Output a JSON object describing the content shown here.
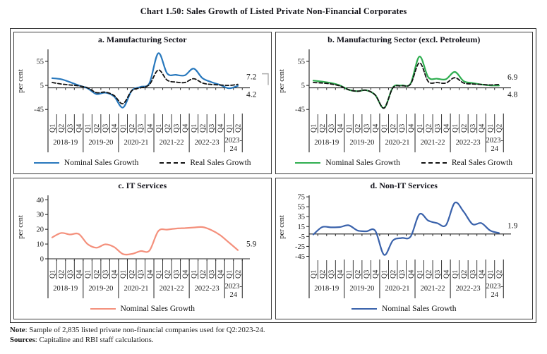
{
  "page": {
    "title": "Chart 1.50: Sales Growth of Listed Private Non-Financial Corporates"
  },
  "notes": {
    "note_label": "Note",
    "note_text": ": Sample of 2,835 listed private non-financial companies used for Q2:2023-24.",
    "sources_label": "Sources",
    "sources_text": ": Capitaline and RBI staff calculations."
  },
  "chart_data": {
    "type": "line",
    "x_axis_unit": "quarter",
    "categories": [
      "Q1",
      "Q2",
      "Q3",
      "Q4",
      "Q1",
      "Q2",
      "Q3",
      "Q4",
      "Q1",
      "Q2",
      "Q3",
      "Q4",
      "Q1",
      "Q2",
      "Q3",
      "Q4",
      "Q1",
      "Q2",
      "Q3",
      "Q4",
      "Q1",
      "Q2"
    ],
    "year_groups": [
      {
        "label": "2018-19",
        "quarters": 4
      },
      {
        "label": "2019-20",
        "quarters": 4
      },
      {
        "label": "2020-21",
        "quarters": 4
      },
      {
        "label": "2021-22",
        "quarters": 4
      },
      {
        "label": "2022-23",
        "quarters": 4
      },
      {
        "label": "2023-24",
        "quarters": 2,
        "wrap": [
          "2023-",
          "24"
        ]
      }
    ],
    "charts": [
      {
        "id": "a",
        "title": "a. Manufacturing Sector",
        "ylabel": "per cent",
        "yticks": [
          55,
          5,
          -45
        ],
        "ylim": [
          -52,
          80
        ],
        "grid": false,
        "legend_position": "bottom",
        "series": [
          {
            "name": "Nominal Sales Growth",
            "color": "#2878bd",
            "dash": false,
            "values": [
              20,
              18,
              12,
              5,
              -1,
              -13,
              -10,
              -18,
              -41,
              -6,
              2,
              10,
              72,
              30,
              27,
              26,
              40,
              20,
              12,
              6,
              -1,
              4.2
            ],
            "end_label": "4.2",
            "end_label_color": "#2878bd",
            "end_label_pos": "below_axis"
          },
          {
            "name": "Real Sales Growth",
            "color": "#111111",
            "dash": true,
            "values": [
              11,
              8,
              6,
              4,
              0,
              -10,
              -9,
              -16,
              -33,
              -6,
              0,
              7,
              37,
              16,
              12,
              11,
              19,
              10,
              7,
              6,
              5,
              7.2
            ],
            "end_label": "7.2",
            "end_label_color": "#111111",
            "end_label_pos": "above",
            "bracket": true
          }
        ]
      },
      {
        "id": "b",
        "title": "b. Manufacturing Sector (excl. Petroleum)",
        "ylabel": "per cent",
        "yticks": [
          55,
          5,
          -45
        ],
        "ylim": [
          -52,
          80
        ],
        "grid": false,
        "legend_position": "bottom",
        "series": [
          {
            "name": "Nominal Sales Growth",
            "color": "#2fae50",
            "dash": false,
            "values": [
              15,
              13,
              10,
              5,
              -4,
              -7,
              -5,
              -15,
              -42,
              1,
              5,
              9,
              65,
              22,
              19,
              18,
              33,
              14,
              10,
              7,
              5,
              4.8
            ],
            "end_label": "4.8",
            "end_label_color": "#2fae50",
            "end_label_pos": "below_axis"
          },
          {
            "name": "Real Sales Growth",
            "color": "#111111",
            "dash": true,
            "values": [
              11,
              10,
              8,
              4,
              -4,
              -7,
              -5,
              -15,
              -42,
              0,
              4,
              8,
              52,
              13,
              11,
              10,
              21,
              10,
              8,
              7,
              6,
              6.9
            ],
            "end_label": "6.9",
            "end_label_color": "#111111",
            "end_label_pos": "above"
          }
        ]
      },
      {
        "id": "c",
        "title": "c. IT Services",
        "ylabel": "per cent",
        "yticks": [
          40,
          30,
          20,
          10,
          0
        ],
        "ylim": [
          0,
          43
        ],
        "grid": false,
        "legend_position": "bottom",
        "series": [
          {
            "name": "Nominal Sales Growth",
            "color": "#f4907c",
            "dash": false,
            "values": [
              14.5,
              17.5,
              16.5,
              16.8,
              10,
              7.5,
              9.8,
              8,
              3.2,
              3.3,
              5.2,
              5.6,
              18.8,
              19.8,
              20.5,
              20.8,
              21.2,
              21.5,
              19.5,
              16,
              11,
              5.9
            ],
            "end_label": "5.9",
            "end_label_color": "#1a1a1a",
            "end_label_pos": "right"
          }
        ]
      },
      {
        "id": "d",
        "title": "d. Non-IT Services",
        "ylabel": "per cent",
        "yticks": [
          75,
          55,
          35,
          15,
          -5,
          -25,
          -45
        ],
        "ylim": [
          -50,
          78
        ],
        "grid": false,
        "legend_position": "bottom",
        "series": [
          {
            "name": "Nominal Sales Growth",
            "color": "#3a62ab",
            "dash": false,
            "values": [
              -1,
              14,
              13.5,
              14,
              17.5,
              7,
              5.5,
              6.5,
              -42,
              -13,
              -8,
              -5,
              40,
              27,
              22,
              18,
              63,
              45,
              20,
              22,
              7,
              1.9
            ],
            "end_label": "1.9",
            "end_label_color": "#1a1a1a",
            "end_label_pos": "above"
          }
        ]
      }
    ]
  }
}
